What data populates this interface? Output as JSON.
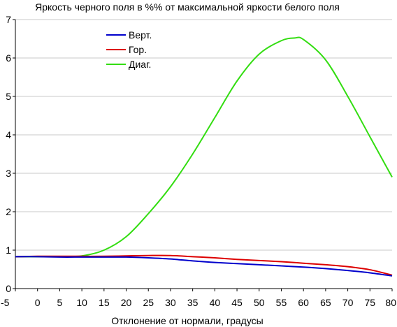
{
  "chart_data": {
    "type": "line",
    "title": "Яркость черного поля в %% от максимальной яркости белого поля",
    "xlabel": "Отклонение от нормали, градусы",
    "ylabel": "",
    "xlim": [
      -5,
      80
    ],
    "ylim": [
      0,
      7
    ],
    "xticks": [
      "-5",
      "0",
      "5",
      "10",
      "15",
      "20",
      "25",
      "30",
      "35",
      "40",
      "45",
      "50",
      "55",
      "60",
      "65",
      "70",
      "75",
      "80"
    ],
    "yticks": [
      "0",
      "1",
      "2",
      "3",
      "4",
      "5",
      "6",
      "7"
    ],
    "grid": "horizontal",
    "legend_position": "top-left",
    "series": [
      {
        "name": "Верт.",
        "color": "#0000cc",
        "x": [
          -5,
          0,
          5,
          10,
          15,
          20,
          25,
          30,
          35,
          40,
          45,
          50,
          55,
          60,
          65,
          70,
          75,
          80
        ],
        "y": [
          0.83,
          0.83,
          0.82,
          0.82,
          0.82,
          0.82,
          0.8,
          0.77,
          0.72,
          0.68,
          0.65,
          0.62,
          0.59,
          0.56,
          0.52,
          0.47,
          0.41,
          0.33
        ]
      },
      {
        "name": "Гор.",
        "color": "#dd0000",
        "x": [
          -5,
          0,
          5,
          10,
          15,
          20,
          25,
          30,
          35,
          40,
          45,
          50,
          55,
          60,
          65,
          70,
          75,
          80
        ],
        "y": [
          0.83,
          0.84,
          0.84,
          0.84,
          0.84,
          0.85,
          0.86,
          0.86,
          0.83,
          0.8,
          0.76,
          0.73,
          0.7,
          0.66,
          0.62,
          0.57,
          0.49,
          0.35
        ]
      },
      {
        "name": "Диаг.",
        "color": "#33dd11",
        "x": [
          -5,
          0,
          5,
          10,
          15,
          20,
          25,
          30,
          35,
          40,
          45,
          50,
          55,
          58,
          60,
          65,
          70,
          75,
          80
        ],
        "y": [
          0.83,
          0.83,
          0.83,
          0.85,
          1.0,
          1.35,
          1.95,
          2.65,
          3.5,
          4.45,
          5.4,
          6.1,
          6.45,
          6.52,
          6.48,
          5.95,
          5.0,
          3.95,
          2.9
        ]
      }
    ]
  }
}
